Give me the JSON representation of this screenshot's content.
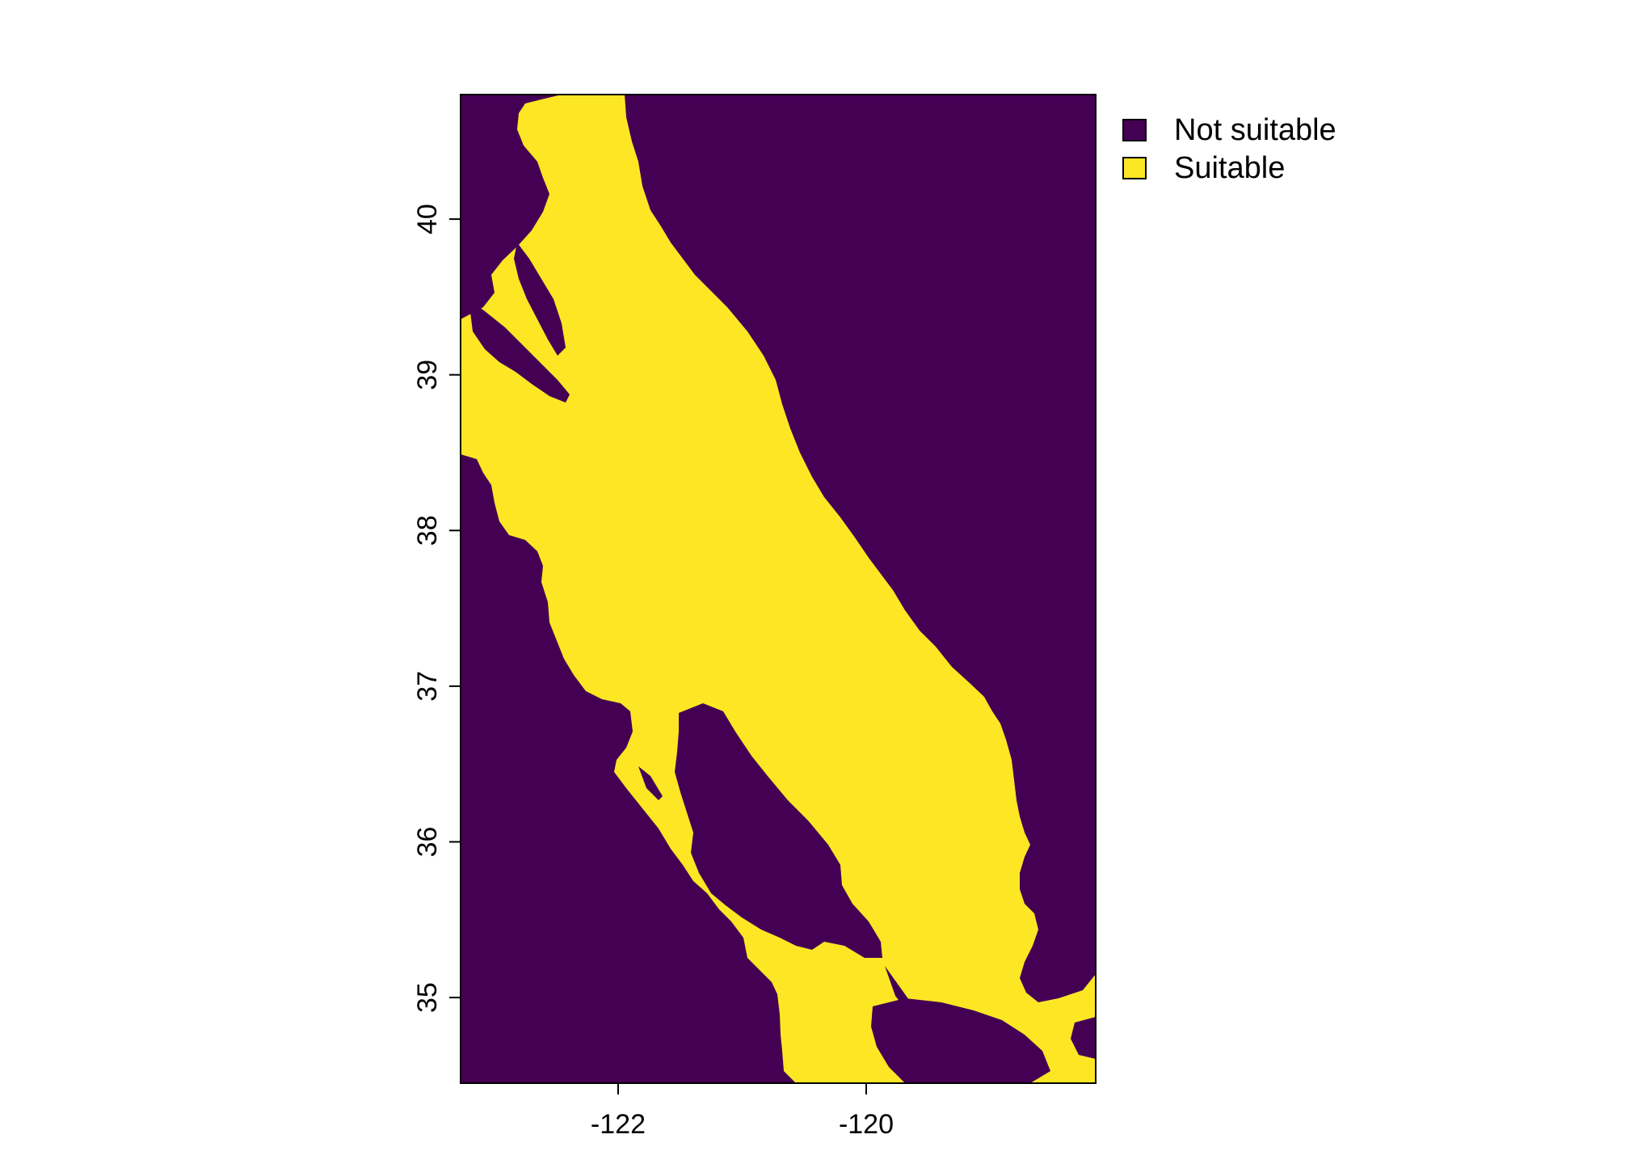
{
  "map": {
    "xaxis": {
      "ticks": [
        -122,
        -120
      ],
      "tick_labels": [
        "-122",
        "-120"
      ],
      "range": [
        -123.27,
        -118.15
      ]
    },
    "yaxis": {
      "ticks": [
        35,
        36,
        37,
        38,
        39,
        40
      ],
      "tick_labels": [
        "35",
        "36",
        "37",
        "38",
        "39",
        "40"
      ],
      "range": [
        34.45,
        40.8
      ]
    },
    "legend": {
      "position": "top-right",
      "items": [
        {
          "label": "Not suitable",
          "color": "#440154"
        },
        {
          "label": "Suitable",
          "color": "#FDE725"
        }
      ]
    },
    "colors": {
      "not_suitable": "#440154",
      "suitable": "#FDE725",
      "no_data": "#FFFFFF"
    }
  }
}
